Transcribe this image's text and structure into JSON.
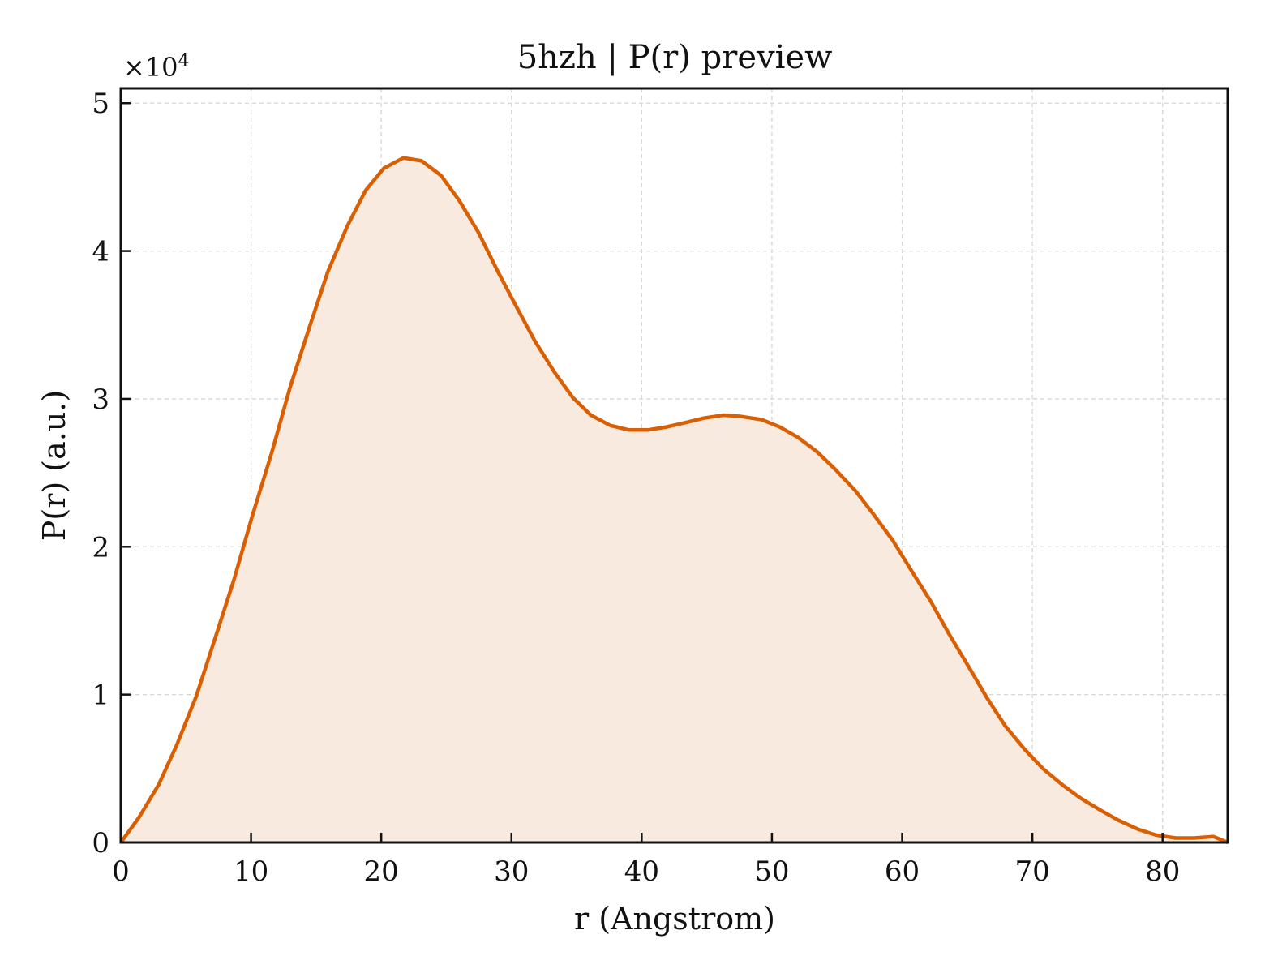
{
  "chart_data": {
    "type": "area",
    "title": "5hzh | P(r) preview",
    "xlabel": "r (Angstrom)",
    "ylabel": "P(r) (a.u.)",
    "y_multiplier_base": "×10",
    "y_multiplier_exp": "4",
    "xlim": [
      0,
      85
    ],
    "ylim": [
      0,
      5.1
    ],
    "xticks": [
      0,
      10,
      20,
      30,
      40,
      50,
      60,
      70,
      80
    ],
    "yticks": [
      0,
      1,
      2,
      3,
      4,
      5
    ],
    "grid": true,
    "line_color": "#d95f02",
    "fill_color": "#f9eae0",
    "series": [
      {
        "x": [
          0,
          1.4,
          2.9,
          4.3,
          5.8,
          7.2,
          8.7,
          10.1,
          11.6,
          13.0,
          14.5,
          15.9,
          17.4,
          18.8,
          20.2,
          21.7,
          23.1,
          24.6,
          26.0,
          27.5,
          28.9,
          30.4,
          31.8,
          33.3,
          34.7,
          36.1,
          37.6,
          39.0,
          40.5,
          41.9,
          43.4,
          44.8,
          46.3,
          47.7,
          49.2,
          50.6,
          52.0,
          53.5,
          54.9,
          56.4,
          57.8,
          59.3,
          60.7,
          62.2,
          63.6,
          65.1,
          66.5,
          67.9,
          69.4,
          70.8,
          72.3,
          73.7,
          75.2,
          76.6,
          78.1,
          79.5,
          81.0,
          82.4,
          83.9,
          85.0
        ],
        "values": [
          0,
          0.17,
          0.39,
          0.66,
          0.99,
          1.37,
          1.78,
          2.21,
          2.64,
          3.08,
          3.49,
          3.86,
          4.17,
          4.41,
          4.56,
          4.63,
          4.61,
          4.51,
          4.34,
          4.12,
          3.87,
          3.62,
          3.39,
          3.18,
          3.01,
          2.89,
          2.82,
          2.79,
          2.79,
          2.81,
          2.84,
          2.87,
          2.89,
          2.88,
          2.86,
          2.81,
          2.74,
          2.64,
          2.52,
          2.38,
          2.22,
          2.04,
          1.84,
          1.63,
          1.41,
          1.19,
          0.98,
          0.79,
          0.63,
          0.5,
          0.39,
          0.3,
          0.22,
          0.15,
          0.09,
          0.05,
          0.03,
          0.03,
          0.04,
          0.0
        ]
      }
    ]
  }
}
